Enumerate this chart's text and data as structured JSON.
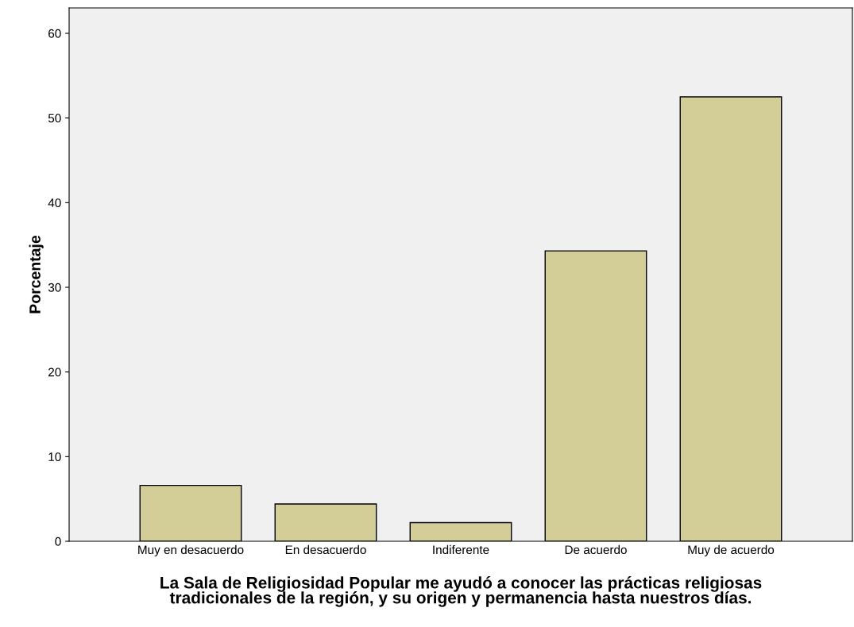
{
  "chart_data": {
    "type": "bar",
    "categories": [
      "Muy en desacuerdo",
      "En desacuerdo",
      "Indiferente",
      "De acuerdo",
      "Muy de acuerdo"
    ],
    "values": [
      6.6,
      4.4,
      2.2,
      34.3,
      52.5
    ],
    "color": "#d3ce97",
    "xlabel": "La Sala de Religiosidad Popular me ayudó a conocer las prácticas religiosas\ntradicionales de la región, y su origen y permanencia hasta nuestros días.",
    "ylabel": "Porcentaje",
    "ylim": [
      0,
      63
    ],
    "yticks": [
      0,
      10,
      20,
      30,
      40,
      50,
      60
    ],
    "grid": false,
    "legend": false
  }
}
